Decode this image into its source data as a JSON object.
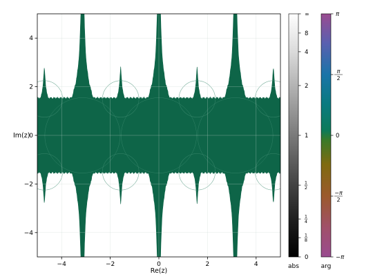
{
  "chart_data": [
    {
      "type": "heatmap",
      "kind": "domain-coloring plot of a complex function (fractal, periodic along Re(z))",
      "xlabel": "Re(z)",
      "ylabel": "Im(z)",
      "xlim": [
        -5,
        5
      ],
      "ylim": [
        -5,
        5
      ],
      "xticks": [
        -4,
        -2,
        0,
        2,
        4
      ],
      "yticks": [
        -4,
        -2,
        0,
        2,
        4
      ],
      "xtick_labels": [
        "−4",
        "−2",
        "0",
        "2",
        "4"
      ],
      "ytick_labels": [
        "−4",
        "−2",
        "0",
        "2",
        "4"
      ],
      "grid": true,
      "fill_color": "#0e6548",
      "background_color": "#ffffff",
      "period": 3.14159,
      "main_spike_centers": [
        -3.14159,
        0,
        3.14159
      ],
      "secondary_spike_centers": [
        -4.71,
        -1.5708,
        1.5708,
        4.71
      ]
    },
    {
      "type": "colorbar",
      "label": "abs",
      "scale": "grayscale, 0 (black) to ∞ (white)",
      "ticks": [
        {
          "value": 0,
          "label": "0"
        },
        {
          "value": 0.125,
          "label": "1/8"
        },
        {
          "value": 0.25,
          "label": "1/4"
        },
        {
          "value": 0.5,
          "label": "1/2"
        },
        {
          "value": 1,
          "label": "1"
        },
        {
          "value": 2,
          "label": "2"
        },
        {
          "value": 4,
          "label": "4"
        },
        {
          "value": 8,
          "label": "8"
        },
        {
          "value": "inf",
          "label": "∞"
        }
      ]
    },
    {
      "type": "colorbar",
      "label": "arg",
      "scale": "cyclic hue, −π to π",
      "ticks": [
        {
          "value": -3.14159,
          "label": "−π"
        },
        {
          "value": -1.5708,
          "label": "−π/2"
        },
        {
          "value": 0,
          "label": "0"
        },
        {
          "value": 1.5708,
          "label": "π/2"
        },
        {
          "value": 3.14159,
          "label": "π"
        }
      ]
    }
  ]
}
